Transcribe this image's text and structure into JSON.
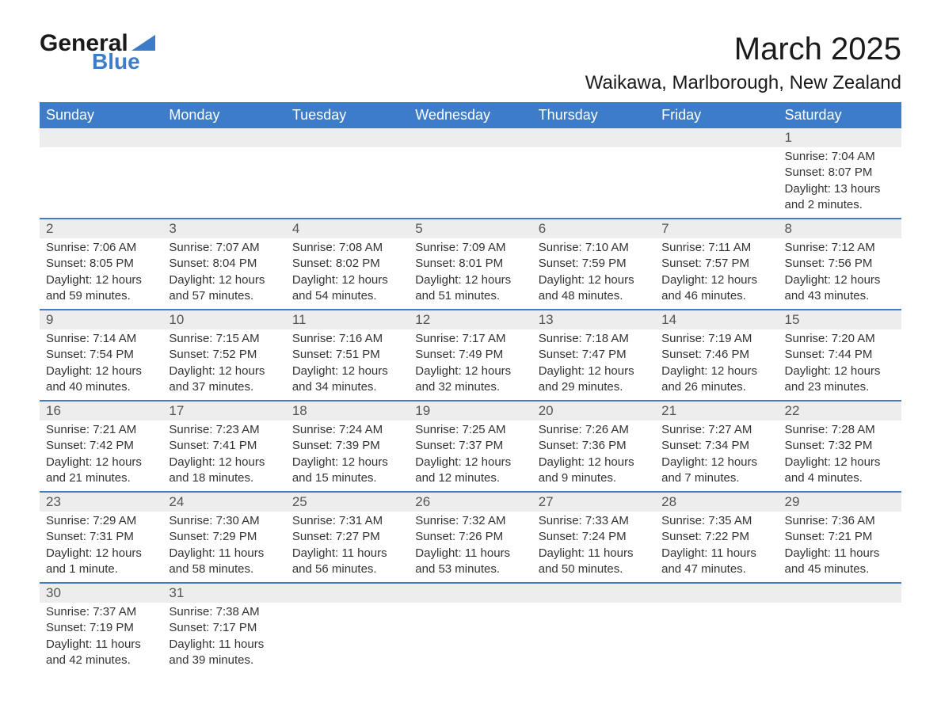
{
  "logo": {
    "general": "General",
    "blue": "Blue",
    "tri_color": "#3d7cc9"
  },
  "title": "March 2025",
  "location": "Waikawa, Marlborough, New Zealand",
  "colors": {
    "header_bg": "#3d7cc9",
    "header_text": "#ffffff",
    "daynum_bg": "#ededed",
    "border": "#3d7cc9",
    "text": "#333333"
  },
  "weekdays": [
    "Sunday",
    "Monday",
    "Tuesday",
    "Wednesday",
    "Thursday",
    "Friday",
    "Saturday"
  ],
  "weeks": [
    [
      {
        "n": "",
        "sr": "",
        "ss": "",
        "dl": ""
      },
      {
        "n": "",
        "sr": "",
        "ss": "",
        "dl": ""
      },
      {
        "n": "",
        "sr": "",
        "ss": "",
        "dl": ""
      },
      {
        "n": "",
        "sr": "",
        "ss": "",
        "dl": ""
      },
      {
        "n": "",
        "sr": "",
        "ss": "",
        "dl": ""
      },
      {
        "n": "",
        "sr": "",
        "ss": "",
        "dl": ""
      },
      {
        "n": "1",
        "sr": "Sunrise: 7:04 AM",
        "ss": "Sunset: 8:07 PM",
        "dl": "Daylight: 13 hours and 2 minutes."
      }
    ],
    [
      {
        "n": "2",
        "sr": "Sunrise: 7:06 AM",
        "ss": "Sunset: 8:05 PM",
        "dl": "Daylight: 12 hours and 59 minutes."
      },
      {
        "n": "3",
        "sr": "Sunrise: 7:07 AM",
        "ss": "Sunset: 8:04 PM",
        "dl": "Daylight: 12 hours and 57 minutes."
      },
      {
        "n": "4",
        "sr": "Sunrise: 7:08 AM",
        "ss": "Sunset: 8:02 PM",
        "dl": "Daylight: 12 hours and 54 minutes."
      },
      {
        "n": "5",
        "sr": "Sunrise: 7:09 AM",
        "ss": "Sunset: 8:01 PM",
        "dl": "Daylight: 12 hours and 51 minutes."
      },
      {
        "n": "6",
        "sr": "Sunrise: 7:10 AM",
        "ss": "Sunset: 7:59 PM",
        "dl": "Daylight: 12 hours and 48 minutes."
      },
      {
        "n": "7",
        "sr": "Sunrise: 7:11 AM",
        "ss": "Sunset: 7:57 PM",
        "dl": "Daylight: 12 hours and 46 minutes."
      },
      {
        "n": "8",
        "sr": "Sunrise: 7:12 AM",
        "ss": "Sunset: 7:56 PM",
        "dl": "Daylight: 12 hours and 43 minutes."
      }
    ],
    [
      {
        "n": "9",
        "sr": "Sunrise: 7:14 AM",
        "ss": "Sunset: 7:54 PM",
        "dl": "Daylight: 12 hours and 40 minutes."
      },
      {
        "n": "10",
        "sr": "Sunrise: 7:15 AM",
        "ss": "Sunset: 7:52 PM",
        "dl": "Daylight: 12 hours and 37 minutes."
      },
      {
        "n": "11",
        "sr": "Sunrise: 7:16 AM",
        "ss": "Sunset: 7:51 PM",
        "dl": "Daylight: 12 hours and 34 minutes."
      },
      {
        "n": "12",
        "sr": "Sunrise: 7:17 AM",
        "ss": "Sunset: 7:49 PM",
        "dl": "Daylight: 12 hours and 32 minutes."
      },
      {
        "n": "13",
        "sr": "Sunrise: 7:18 AM",
        "ss": "Sunset: 7:47 PM",
        "dl": "Daylight: 12 hours and 29 minutes."
      },
      {
        "n": "14",
        "sr": "Sunrise: 7:19 AM",
        "ss": "Sunset: 7:46 PM",
        "dl": "Daylight: 12 hours and 26 minutes."
      },
      {
        "n": "15",
        "sr": "Sunrise: 7:20 AM",
        "ss": "Sunset: 7:44 PM",
        "dl": "Daylight: 12 hours and 23 minutes."
      }
    ],
    [
      {
        "n": "16",
        "sr": "Sunrise: 7:21 AM",
        "ss": "Sunset: 7:42 PM",
        "dl": "Daylight: 12 hours and 21 minutes."
      },
      {
        "n": "17",
        "sr": "Sunrise: 7:23 AM",
        "ss": "Sunset: 7:41 PM",
        "dl": "Daylight: 12 hours and 18 minutes."
      },
      {
        "n": "18",
        "sr": "Sunrise: 7:24 AM",
        "ss": "Sunset: 7:39 PM",
        "dl": "Daylight: 12 hours and 15 minutes."
      },
      {
        "n": "19",
        "sr": "Sunrise: 7:25 AM",
        "ss": "Sunset: 7:37 PM",
        "dl": "Daylight: 12 hours and 12 minutes."
      },
      {
        "n": "20",
        "sr": "Sunrise: 7:26 AM",
        "ss": "Sunset: 7:36 PM",
        "dl": "Daylight: 12 hours and 9 minutes."
      },
      {
        "n": "21",
        "sr": "Sunrise: 7:27 AM",
        "ss": "Sunset: 7:34 PM",
        "dl": "Daylight: 12 hours and 7 minutes."
      },
      {
        "n": "22",
        "sr": "Sunrise: 7:28 AM",
        "ss": "Sunset: 7:32 PM",
        "dl": "Daylight: 12 hours and 4 minutes."
      }
    ],
    [
      {
        "n": "23",
        "sr": "Sunrise: 7:29 AM",
        "ss": "Sunset: 7:31 PM",
        "dl": "Daylight: 12 hours and 1 minute."
      },
      {
        "n": "24",
        "sr": "Sunrise: 7:30 AM",
        "ss": "Sunset: 7:29 PM",
        "dl": "Daylight: 11 hours and 58 minutes."
      },
      {
        "n": "25",
        "sr": "Sunrise: 7:31 AM",
        "ss": "Sunset: 7:27 PM",
        "dl": "Daylight: 11 hours and 56 minutes."
      },
      {
        "n": "26",
        "sr": "Sunrise: 7:32 AM",
        "ss": "Sunset: 7:26 PM",
        "dl": "Daylight: 11 hours and 53 minutes."
      },
      {
        "n": "27",
        "sr": "Sunrise: 7:33 AM",
        "ss": "Sunset: 7:24 PM",
        "dl": "Daylight: 11 hours and 50 minutes."
      },
      {
        "n": "28",
        "sr": "Sunrise: 7:35 AM",
        "ss": "Sunset: 7:22 PM",
        "dl": "Daylight: 11 hours and 47 minutes."
      },
      {
        "n": "29",
        "sr": "Sunrise: 7:36 AM",
        "ss": "Sunset: 7:21 PM",
        "dl": "Daylight: 11 hours and 45 minutes."
      }
    ],
    [
      {
        "n": "30",
        "sr": "Sunrise: 7:37 AM",
        "ss": "Sunset: 7:19 PM",
        "dl": "Daylight: 11 hours and 42 minutes."
      },
      {
        "n": "31",
        "sr": "Sunrise: 7:38 AM",
        "ss": "Sunset: 7:17 PM",
        "dl": "Daylight: 11 hours and 39 minutes."
      },
      {
        "n": "",
        "sr": "",
        "ss": "",
        "dl": ""
      },
      {
        "n": "",
        "sr": "",
        "ss": "",
        "dl": ""
      },
      {
        "n": "",
        "sr": "",
        "ss": "",
        "dl": ""
      },
      {
        "n": "",
        "sr": "",
        "ss": "",
        "dl": ""
      },
      {
        "n": "",
        "sr": "",
        "ss": "",
        "dl": ""
      }
    ]
  ]
}
